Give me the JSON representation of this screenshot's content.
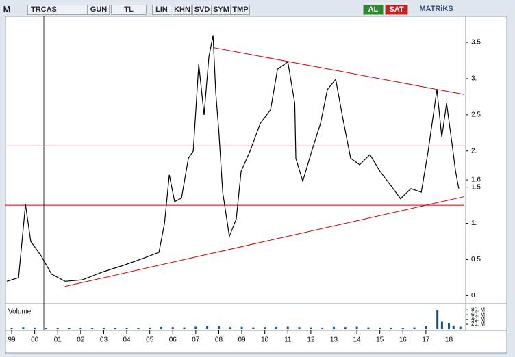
{
  "toolbar": {
    "logo": "M",
    "symbol": "TRCAS",
    "buttons": [
      "GUN",
      "TL",
      "LIN",
      "KHN",
      "SVD",
      "SYM",
      "TMP"
    ],
    "buy": "AL",
    "sell": "SAT",
    "brand": "MATRiKS"
  },
  "chart_data": [
    {
      "type": "line",
      "x": [
        1998.79,
        1999.3,
        1999.6,
        1999.83,
        2000.28,
        2000.73,
        2001.32,
        2002.07,
        2002.96,
        2003.85,
        2004.74,
        2005.4,
        2005.64,
        2005.85,
        2006.08,
        2006.38,
        2006.68,
        2006.89,
        2007.13,
        2007.36,
        2007.57,
        2007.75,
        2007.87,
        2008.0,
        2008.17,
        2008.46,
        2008.76,
        2008.97,
        2009.36,
        2009.8,
        2010.25,
        2010.55,
        2011.0,
        2011.3,
        2011.35,
        2011.65,
        2012.04,
        2012.42,
        2012.72,
        2013.08,
        2013.38,
        2013.73,
        2014.12,
        2014.57,
        2015.0,
        2015.46,
        2015.9,
        2016.35,
        2016.8,
        2017.1,
        2017.48,
        2017.69,
        2017.9,
        2018.14,
        2018.29,
        2018.43
      ],
      "values": [
        0.2,
        0.25,
        1.26,
        0.75,
        0.55,
        0.3,
        0.2,
        0.22,
        0.33,
        0.42,
        0.52,
        0.6,
        1.0,
        1.67,
        1.3,
        1.35,
        1.9,
        2.0,
        3.2,
        2.5,
        3.3,
        3.6,
        2.8,
        2.28,
        1.43,
        0.82,
        1.06,
        1.72,
        2.0,
        2.38,
        2.57,
        3.13,
        3.23,
        2.66,
        1.9,
        1.58,
        2.0,
        2.38,
        2.85,
        2.99,
        2.47,
        1.9,
        1.81,
        1.95,
        1.72,
        1.53,
        1.34,
        1.48,
        1.43,
        2.0,
        2.85,
        2.19,
        2.66,
        2.09,
        1.72,
        1.48
      ],
      "color": "#000000",
      "xlim": [
        1998.79,
        2018.67
      ],
      "ylim": [
        -0.1,
        3.85
      ],
      "xticks": [
        {
          "value": 1999,
          "label": "99"
        },
        {
          "value": 2000,
          "label": "00"
        },
        {
          "value": 2001,
          "label": "01"
        },
        {
          "value": 2002,
          "label": "02"
        },
        {
          "value": 2003,
          "label": "03"
        },
        {
          "value": 2004,
          "label": "04"
        },
        {
          "value": 2005,
          "label": "05"
        },
        {
          "value": 2006,
          "label": "06"
        },
        {
          "value": 2007,
          "label": "07"
        },
        {
          "value": 2008,
          "label": "08"
        },
        {
          "value": 2009,
          "label": "09"
        },
        {
          "value": 2010,
          "label": "10"
        },
        {
          "value": 2011,
          "label": "11"
        },
        {
          "value": 2012,
          "label": "12"
        },
        {
          "value": 2013,
          "label": "13"
        },
        {
          "value": 2014,
          "label": "14"
        },
        {
          "value": 2015,
          "label": "15"
        },
        {
          "value": 2016,
          "label": "16"
        },
        {
          "value": 2017,
          "label": "17"
        },
        {
          "value": 2018,
          "label": "18"
        }
      ],
      "yticks": [
        0,
        0.5,
        {
          "value": 1,
          "label": "1."
        },
        1.5,
        1.6,
        {
          "value": 2,
          "label": "2."
        },
        2.5,
        {
          "value": 3,
          "label": "3."
        },
        3.5
      ],
      "trend_lines": [
        {
          "x": [
            2007.75,
            2018.67
          ],
          "values": [
            3.43,
            2.78
          ]
        },
        {
          "x": [
            2001.32,
            2018.67
          ],
          "values": [
            0.13,
            1.37
          ]
        }
      ],
      "hlines": [
        2.07,
        1.25
      ],
      "line_color": "#cc0000"
    },
    {
      "type": "bar",
      "title": "Volume",
      "x": [
        1999.0,
        1999.5,
        2000.0,
        2000.5,
        2001.0,
        2001.5,
        2002.0,
        2002.5,
        2003.0,
        2003.5,
        2004.0,
        2004.5,
        2005.0,
        2005.5,
        2006.0,
        2006.5,
        2007.0,
        2007.5,
        2008.0,
        2008.5,
        2009.0,
        2009.5,
        2010.0,
        2010.5,
        2011.0,
        2011.5,
        2012.0,
        2012.5,
        2013.0,
        2013.5,
        2014.0,
        2014.5,
        2015.0,
        2015.5,
        2016.0,
        2016.5,
        2017.0,
        2017.5,
        2017.7,
        2018.0,
        2018.2,
        2018.5
      ],
      "values": [
        4,
        8,
        6,
        5,
        4,
        3,
        4,
        3,
        4,
        4,
        5,
        5,
        6,
        9,
        8,
        7,
        10,
        14,
        12,
        8,
        9,
        7,
        8,
        9,
        10,
        8,
        7,
        6,
        9,
        8,
        10,
        7,
        6,
        6,
        5,
        7,
        12,
        80,
        30,
        25,
        15,
        10
      ],
      "color": "#1a4f7a",
      "xlim": [
        1998.79,
        2018.67
      ],
      "ylim": [
        0,
        95
      ],
      "yticks": [
        {
          "value": 20,
          "label": "20. M"
        },
        {
          "value": 40,
          "label": "40. M"
        },
        {
          "value": 60,
          "label": "60. M"
        },
        {
          "value": 80,
          "label": "80. M"
        }
      ]
    }
  ]
}
